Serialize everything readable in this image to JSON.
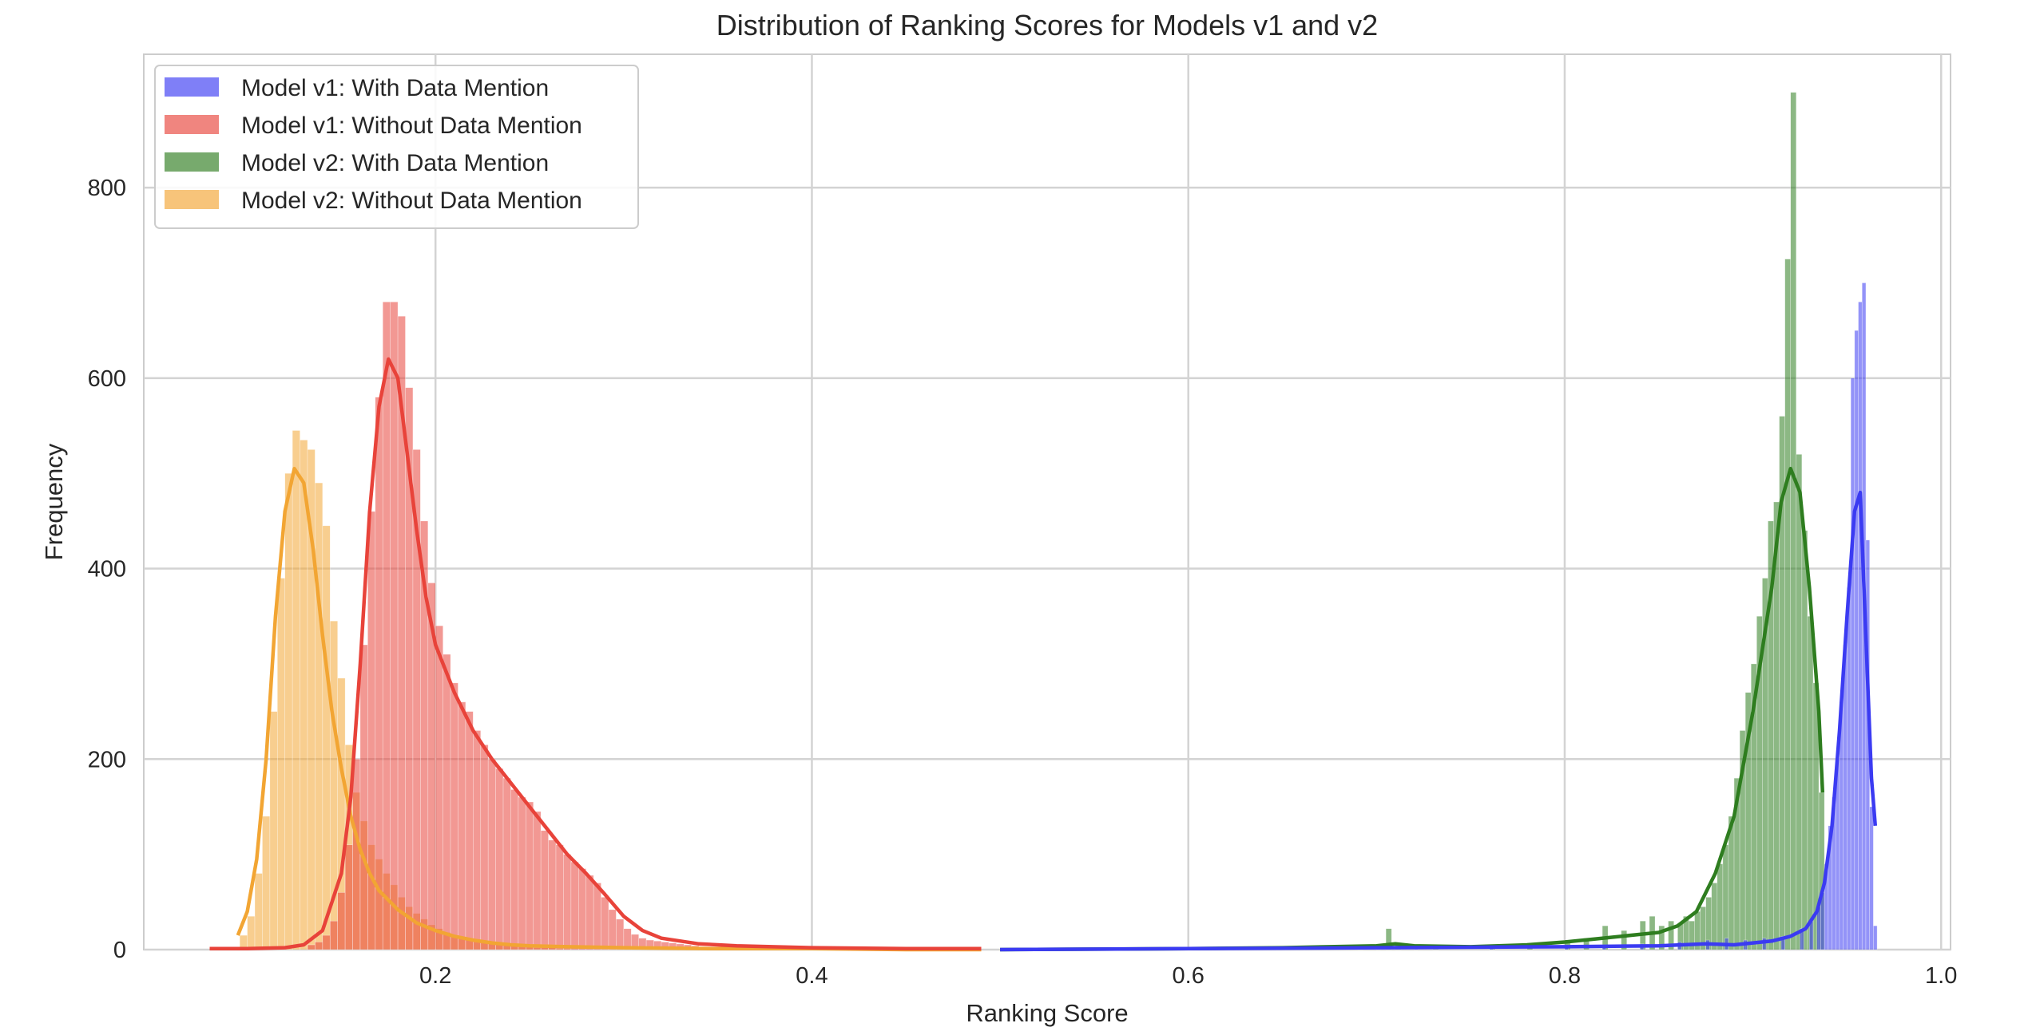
{
  "chart_data": {
    "type": "histogram",
    "title": "Distribution of Ranking Scores for Models v1 and v2",
    "xlabel": "Ranking Score",
    "ylabel": "Frequency",
    "xlim": [
      0.045,
      1.005
    ],
    "ylim": [
      0,
      940
    ],
    "xticks": [
      0.2,
      0.4,
      0.6,
      0.8,
      1.0
    ],
    "xtick_labels": [
      "0.2",
      "0.4",
      "0.6",
      "0.8",
      "1.0"
    ],
    "yticks": [
      0,
      200,
      400,
      600,
      800
    ],
    "ytick_labels": [
      "0",
      "200",
      "400",
      "600",
      "800"
    ],
    "grid": true,
    "legend_position": "top-left",
    "series": [
      {
        "name": "Model v1: With Data Mention",
        "color": "#3b3bf2",
        "bin_width": 0.002,
        "bins": [
          [
            0.6,
            1
          ],
          [
            0.66,
            2
          ],
          [
            0.7,
            3
          ],
          [
            0.72,
            4
          ],
          [
            0.76,
            3
          ],
          [
            0.8,
            4
          ],
          [
            0.82,
            5
          ],
          [
            0.84,
            6
          ],
          [
            0.86,
            8
          ],
          [
            0.875,
            10
          ],
          [
            0.885,
            12
          ],
          [
            0.895,
            10
          ],
          [
            0.905,
            12
          ],
          [
            0.915,
            14
          ],
          [
            0.925,
            22
          ],
          [
            0.93,
            30
          ],
          [
            0.934,
            45
          ],
          [
            0.936,
            60
          ],
          [
            0.938,
            90
          ],
          [
            0.94,
            130
          ],
          [
            0.942,
            160
          ],
          [
            0.944,
            200
          ],
          [
            0.946,
            260
          ],
          [
            0.948,
            320
          ],
          [
            0.95,
            380
          ],
          [
            0.952,
            600
          ],
          [
            0.954,
            650
          ],
          [
            0.956,
            680
          ],
          [
            0.958,
            700
          ],
          [
            0.96,
            430
          ],
          [
            0.962,
            150
          ],
          [
            0.964,
            25
          ]
        ],
        "kde": [
          [
            0.5,
            0
          ],
          [
            0.6,
            1
          ],
          [
            0.7,
            2
          ],
          [
            0.8,
            3
          ],
          [
            0.85,
            4
          ],
          [
            0.875,
            6
          ],
          [
            0.89,
            5
          ],
          [
            0.9,
            7
          ],
          [
            0.91,
            9
          ],
          [
            0.92,
            14
          ],
          [
            0.928,
            22
          ],
          [
            0.934,
            40
          ],
          [
            0.938,
            70
          ],
          [
            0.942,
            130
          ],
          [
            0.946,
            230
          ],
          [
            0.95,
            350
          ],
          [
            0.954,
            460
          ],
          [
            0.957,
            480
          ],
          [
            0.959,
            380
          ],
          [
            0.961,
            280
          ],
          [
            0.963,
            180
          ],
          [
            0.965,
            130
          ]
        ]
      },
      {
        "name": "Model v1: Without Data Mention",
        "color": "#e8433a",
        "bin_width": 0.004,
        "bins": [
          [
            0.132,
            5
          ],
          [
            0.136,
            8
          ],
          [
            0.14,
            15
          ],
          [
            0.144,
            30
          ],
          [
            0.148,
            60
          ],
          [
            0.152,
            110
          ],
          [
            0.156,
            200
          ],
          [
            0.16,
            320
          ],
          [
            0.164,
            460
          ],
          [
            0.168,
            580
          ],
          [
            0.172,
            680
          ],
          [
            0.176,
            680
          ],
          [
            0.18,
            665
          ],
          [
            0.184,
            590
          ],
          [
            0.188,
            525
          ],
          [
            0.192,
            450
          ],
          [
            0.196,
            385
          ],
          [
            0.2,
            340
          ],
          [
            0.204,
            310
          ],
          [
            0.208,
            280
          ],
          [
            0.212,
            260
          ],
          [
            0.216,
            250
          ],
          [
            0.22,
            230
          ],
          [
            0.224,
            215
          ],
          [
            0.228,
            200
          ],
          [
            0.232,
            190
          ],
          [
            0.236,
            180
          ],
          [
            0.24,
            168
          ],
          [
            0.244,
            160
          ],
          [
            0.248,
            155
          ],
          [
            0.252,
            145
          ],
          [
            0.256,
            125
          ],
          [
            0.26,
            115
          ],
          [
            0.264,
            110
          ],
          [
            0.268,
            100
          ],
          [
            0.272,
            92
          ],
          [
            0.276,
            85
          ],
          [
            0.28,
            78
          ],
          [
            0.284,
            70
          ],
          [
            0.288,
            55
          ],
          [
            0.292,
            42
          ],
          [
            0.296,
            32
          ],
          [
            0.3,
            22
          ],
          [
            0.304,
            16
          ],
          [
            0.308,
            12
          ],
          [
            0.312,
            10
          ],
          [
            0.316,
            9
          ],
          [
            0.32,
            8
          ],
          [
            0.324,
            7
          ],
          [
            0.328,
            6
          ],
          [
            0.332,
            5
          ],
          [
            0.336,
            4
          ],
          [
            0.34,
            3
          ],
          [
            0.35,
            3
          ],
          [
            0.36,
            2
          ],
          [
            0.38,
            2
          ],
          [
            0.4,
            1
          ],
          [
            0.42,
            1
          ],
          [
            0.44,
            1
          ],
          [
            0.46,
            1
          ],
          [
            0.48,
            1
          ]
        ],
        "kde": [
          [
            0.08,
            1
          ],
          [
            0.1,
            1
          ],
          [
            0.12,
            2
          ],
          [
            0.13,
            5
          ],
          [
            0.14,
            20
          ],
          [
            0.15,
            80
          ],
          [
            0.155,
            160
          ],
          [
            0.16,
            300
          ],
          [
            0.165,
            460
          ],
          [
            0.17,
            570
          ],
          [
            0.175,
            620
          ],
          [
            0.18,
            600
          ],
          [
            0.185,
            520
          ],
          [
            0.19,
            440
          ],
          [
            0.195,
            370
          ],
          [
            0.2,
            320
          ],
          [
            0.21,
            270
          ],
          [
            0.22,
            230
          ],
          [
            0.23,
            200
          ],
          [
            0.24,
            175
          ],
          [
            0.25,
            150
          ],
          [
            0.26,
            125
          ],
          [
            0.27,
            100
          ],
          [
            0.28,
            80
          ],
          [
            0.29,
            58
          ],
          [
            0.3,
            35
          ],
          [
            0.31,
            20
          ],
          [
            0.32,
            12
          ],
          [
            0.34,
            6
          ],
          [
            0.36,
            4
          ],
          [
            0.4,
            2
          ],
          [
            0.45,
            1
          ],
          [
            0.49,
            1
          ]
        ]
      },
      {
        "name": "Model v2: With Data Mention",
        "color": "#2e7d1f",
        "bin_width": 0.003,
        "bins": [
          [
            0.5,
            1
          ],
          [
            0.55,
            1
          ],
          [
            0.6,
            1
          ],
          [
            0.65,
            2
          ],
          [
            0.69,
            3
          ],
          [
            0.705,
            22
          ],
          [
            0.71,
            6
          ],
          [
            0.73,
            3
          ],
          [
            0.76,
            4
          ],
          [
            0.78,
            5
          ],
          [
            0.8,
            10
          ],
          [
            0.81,
            12
          ],
          [
            0.82,
            25
          ],
          [
            0.83,
            20
          ],
          [
            0.84,
            30
          ],
          [
            0.845,
            35
          ],
          [
            0.85,
            25
          ],
          [
            0.855,
            30
          ],
          [
            0.86,
            28
          ],
          [
            0.863,
            35
          ],
          [
            0.866,
            30
          ],
          [
            0.869,
            40
          ],
          [
            0.872,
            45
          ],
          [
            0.875,
            55
          ],
          [
            0.878,
            70
          ],
          [
            0.881,
            90
          ],
          [
            0.884,
            110
          ],
          [
            0.887,
            140
          ],
          [
            0.89,
            180
          ],
          [
            0.893,
            230
          ],
          [
            0.896,
            270
          ],
          [
            0.899,
            300
          ],
          [
            0.902,
            350
          ],
          [
            0.905,
            390
          ],
          [
            0.908,
            450
          ],
          [
            0.911,
            470
          ],
          [
            0.914,
            560
          ],
          [
            0.917,
            725
          ],
          [
            0.92,
            900
          ],
          [
            0.923,
            520
          ],
          [
            0.926,
            440
          ],
          [
            0.929,
            350
          ],
          [
            0.932,
            280
          ],
          [
            0.935,
            165
          ]
        ],
        "kde": [
          [
            0.5,
            0
          ],
          [
            0.6,
            1
          ],
          [
            0.65,
            2
          ],
          [
            0.7,
            4
          ],
          [
            0.71,
            6
          ],
          [
            0.72,
            4
          ],
          [
            0.75,
            3
          ],
          [
            0.78,
            5
          ],
          [
            0.8,
            8
          ],
          [
            0.82,
            12
          ],
          [
            0.84,
            16
          ],
          [
            0.85,
            18
          ],
          [
            0.86,
            25
          ],
          [
            0.87,
            40
          ],
          [
            0.88,
            80
          ],
          [
            0.89,
            140
          ],
          [
            0.9,
            250
          ],
          [
            0.91,
            380
          ],
          [
            0.915,
            470
          ],
          [
            0.92,
            505
          ],
          [
            0.925,
            480
          ],
          [
            0.93,
            380
          ],
          [
            0.935,
            250
          ],
          [
            0.937,
            165
          ]
        ]
      },
      {
        "name": "Model v2: Without Data Mention",
        "color": "#f2a533",
        "bin_width": 0.004,
        "bins": [
          [
            0.096,
            15
          ],
          [
            0.1,
            35
          ],
          [
            0.104,
            80
          ],
          [
            0.108,
            140
          ],
          [
            0.112,
            250
          ],
          [
            0.116,
            390
          ],
          [
            0.12,
            500
          ],
          [
            0.124,
            545
          ],
          [
            0.128,
            535
          ],
          [
            0.132,
            525
          ],
          [
            0.136,
            490
          ],
          [
            0.14,
            445
          ],
          [
            0.144,
            345
          ],
          [
            0.148,
            285
          ],
          [
            0.152,
            215
          ],
          [
            0.156,
            165
          ],
          [
            0.16,
            135
          ],
          [
            0.164,
            110
          ],
          [
            0.168,
            95
          ],
          [
            0.172,
            80
          ],
          [
            0.176,
            68
          ],
          [
            0.18,
            55
          ],
          [
            0.184,
            45
          ],
          [
            0.188,
            38
          ],
          [
            0.192,
            32
          ],
          [
            0.196,
            26
          ],
          [
            0.2,
            22
          ],
          [
            0.204,
            18
          ],
          [
            0.208,
            15
          ],
          [
            0.212,
            12
          ],
          [
            0.216,
            10
          ],
          [
            0.22,
            8
          ],
          [
            0.224,
            7
          ],
          [
            0.228,
            6
          ],
          [
            0.232,
            5
          ],
          [
            0.236,
            4
          ],
          [
            0.24,
            4
          ],
          [
            0.244,
            3
          ],
          [
            0.248,
            3
          ],
          [
            0.252,
            2
          ],
          [
            0.256,
            2
          ],
          [
            0.26,
            2
          ],
          [
            0.264,
            1
          ],
          [
            0.268,
            1
          ]
        ],
        "kde": [
          [
            0.095,
            15
          ],
          [
            0.1,
            40
          ],
          [
            0.105,
            95
          ],
          [
            0.11,
            200
          ],
          [
            0.115,
            350
          ],
          [
            0.12,
            460
          ],
          [
            0.125,
            505
          ],
          [
            0.13,
            490
          ],
          [
            0.135,
            420
          ],
          [
            0.14,
            330
          ],
          [
            0.145,
            250
          ],
          [
            0.15,
            190
          ],
          [
            0.155,
            140
          ],
          [
            0.16,
            105
          ],
          [
            0.165,
            80
          ],
          [
            0.17,
            62
          ],
          [
            0.18,
            42
          ],
          [
            0.19,
            28
          ],
          [
            0.2,
            20
          ],
          [
            0.21,
            14
          ],
          [
            0.22,
            10
          ],
          [
            0.23,
            7
          ],
          [
            0.24,
            5
          ],
          [
            0.25,
            4
          ],
          [
            0.27,
            3
          ],
          [
            0.3,
            2
          ],
          [
            0.35,
            1
          ],
          [
            0.4,
            1
          ],
          [
            0.45,
            0
          ],
          [
            0.49,
            0
          ]
        ]
      }
    ]
  }
}
